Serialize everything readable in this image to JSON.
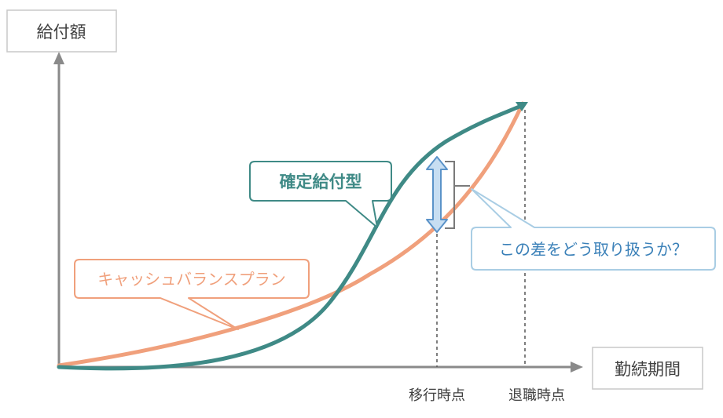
{
  "axes": {
    "y_label": "給付額",
    "x_label": "勤続期間"
  },
  "markers": {
    "transition": "移行時点",
    "retirement": "退職時点"
  },
  "callouts": {
    "defined_benefit": "確定給付型",
    "cash_balance": "キャッシュバランスプラン",
    "question": "この差をどう取り扱うか？"
  },
  "colors": {
    "axis": "#8a8a8a",
    "defined_benefit": "#3f8a86",
    "cash_balance": "#f0a07c",
    "question_border": "#a9cde4",
    "question_text": "#3a80b8",
    "arrow_fill": "#c7def2",
    "arrow_stroke": "#5b93c9",
    "label_box_border": "#c8c8c8",
    "label_text": "#404040"
  },
  "icons": {
    "difference_arrow": "double-headed-arrow-icon",
    "bracket": "bracket-icon"
  }
}
